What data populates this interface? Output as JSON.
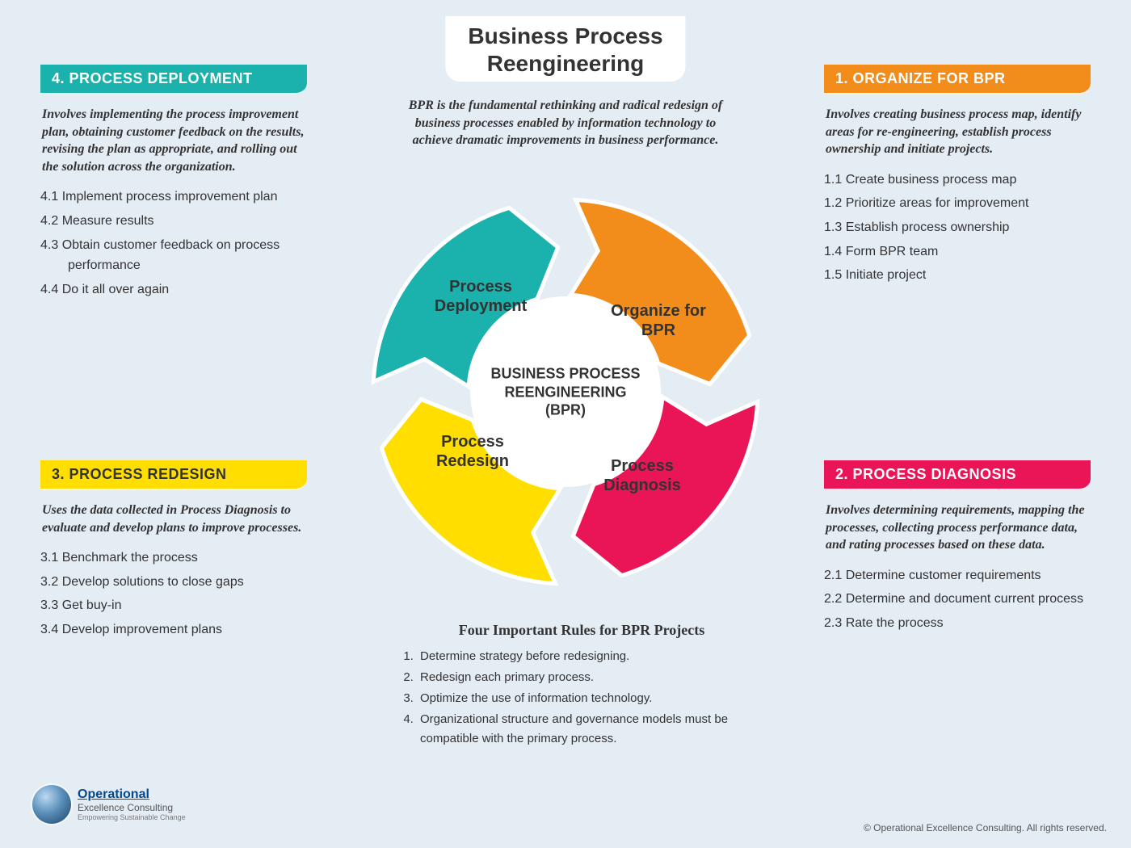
{
  "title_line1": "Business Process",
  "title_line2": "Reengineering",
  "subtitle_text": "BPR is the fundamental rethinking and radical redesign of business processes enabled by information technology to achieve dramatic improvements in business performance.",
  "colors": {
    "bg": "#e4ecf4",
    "orange": "#f28c1b",
    "pink": "#ea1557",
    "yellow": "#ffde00",
    "teal": "#1bb1ac",
    "text": "#333333"
  },
  "center_label": "BUSINESS PROCESS REENGINEERING (BPR)",
  "segments": [
    {
      "key": "organize",
      "label": "Organize for BPR",
      "color": "#f28c1b"
    },
    {
      "key": "diagnosis",
      "label": "Process Diagnosis",
      "color": "#ea1557"
    },
    {
      "key": "redesign",
      "label": "Process Redesign",
      "color": "#ffde00"
    },
    {
      "key": "deploy",
      "label": "Process Deployment",
      "color": "#1bb1ac"
    }
  ],
  "sections": {
    "organize": {
      "header": "1.  ORGANIZE FOR BPR",
      "header_bg": "#f28c1b",
      "header_color": "#ffffff",
      "desc": "Involves creating business process map, identify areas for re-engineering, establish process ownership and initiate projects.",
      "items": [
        "1.1  Create business process map",
        "1.2  Prioritize areas for improvement",
        "1.3  Establish process ownership",
        "1.4  Form BPR team",
        "1.5  Initiate project"
      ]
    },
    "diagnosis": {
      "header": "2.  PROCESS DIAGNOSIS",
      "header_bg": "#ea1557",
      "header_color": "#ffffff",
      "desc": "Involves determining requirements, mapping the processes, collecting process performance data, and rating processes based on these data.",
      "items": [
        "2.1  Determine customer requirements",
        "2.2  Determine and document current process",
        "2.3  Rate the process"
      ]
    },
    "redesign": {
      "header": "3.  PROCESS REDESIGN",
      "header_bg": "#ffde00",
      "header_color": "#333333",
      "desc": "Uses the data collected in Process Diagnosis to evaluate and develop plans to improve processes.",
      "items": [
        "3.1  Benchmark the process",
        "3.2  Develop solutions to close gaps",
        "3.3  Get buy-in",
        "3.4  Develop improvement plans"
      ]
    },
    "deploy": {
      "header": "4.  PROCESS DEPLOYMENT",
      "header_bg": "#1bb1ac",
      "header_color": "#ffffff",
      "desc": "Involves implementing the process improvement plan, obtaining customer feedback on the results, revising the plan as appropriate, and rolling out the solution across the organization.",
      "items": [
        "4.1  Implement process improvement plan",
        "4.2  Measure results",
        "4.3  Obtain customer feedback on process performance",
        "4.4  Do it all over again"
      ]
    }
  },
  "rules": {
    "title": "Four Important Rules for BPR Projects",
    "items": [
      "Determine strategy before redesigning.",
      "Redesign each primary process.",
      "Optimize the use of information technology.",
      "Organizational structure and governance models must be compatible with the primary process."
    ]
  },
  "logo": {
    "line1": "Operational",
    "line2": "Excellence Consulting",
    "line3": "Empowering Sustainable Change"
  },
  "copyright": "© Operational Excellence Consulting. All rights reserved."
}
